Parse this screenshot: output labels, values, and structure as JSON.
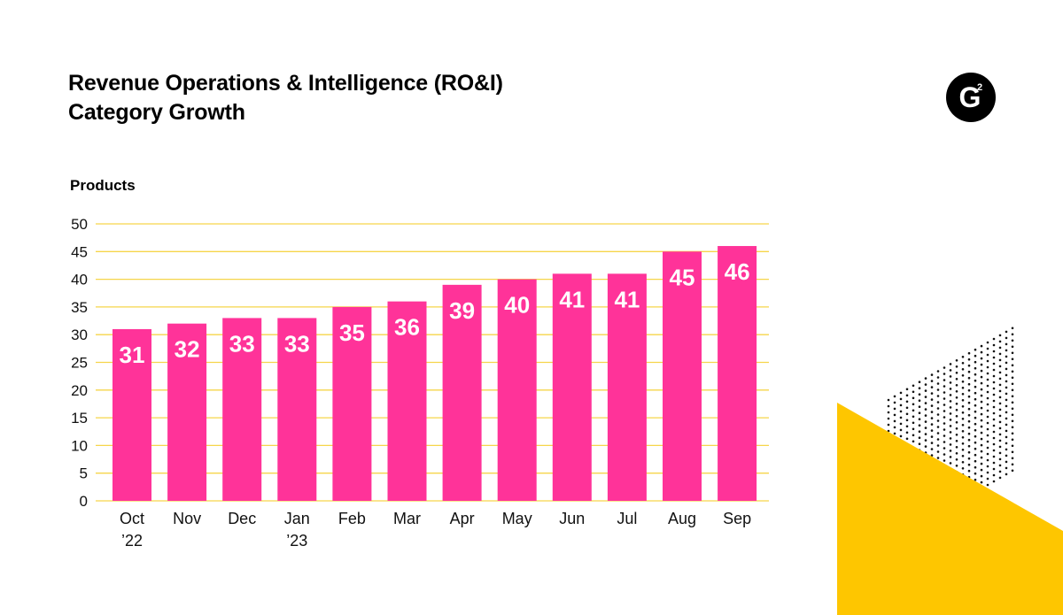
{
  "header": {
    "title_line1": "Revenue Operations & Intelligence (RO&I)",
    "title_line2": "Category Growth"
  },
  "logo": {
    "icon": "g2-logo-icon",
    "text": "G",
    "superscript": "2"
  },
  "colors": {
    "bar": "#ff3399",
    "grid": "#f6d54a",
    "bar_label": "#ffffff",
    "accent_yellow": "#fec600",
    "dots": "#111111"
  },
  "chart_data": {
    "type": "bar",
    "ylabel": "Products",
    "xlabel": "",
    "ylim": [
      0,
      50
    ],
    "yticks": [
      0,
      5,
      10,
      15,
      20,
      25,
      30,
      35,
      40,
      45,
      50
    ],
    "grid": true,
    "categories": [
      [
        "Oct",
        "’22"
      ],
      [
        "Nov"
      ],
      [
        "Dec"
      ],
      [
        "Jan",
        "’23"
      ],
      [
        "Feb"
      ],
      [
        "Mar"
      ],
      [
        "Apr"
      ],
      [
        "May"
      ],
      [
        "Jun"
      ],
      [
        "Jul"
      ],
      [
        "Aug"
      ],
      [
        "Sep"
      ]
    ],
    "values": [
      31,
      32,
      33,
      33,
      35,
      36,
      39,
      40,
      41,
      41,
      45,
      46
    ],
    "data_labels": [
      "31",
      "32",
      "33",
      "33",
      "35",
      "36",
      "39",
      "40",
      "41",
      "41",
      "45",
      "46"
    ]
  }
}
